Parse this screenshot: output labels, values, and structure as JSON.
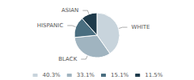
{
  "chart_data": {
    "type": "pie",
    "categories": [
      "WHITE",
      "BLACK",
      "HISPANIC",
      "ASIAN"
    ],
    "values": [
      40.3,
      33.1,
      15.1,
      11.5
    ],
    "value_labels": [
      "40.3%",
      "33.1%",
      "15.1%",
      "11.5%"
    ],
    "colors": [
      "#c8d4dc",
      "#a0b4c0",
      "#4a6e80",
      "#1e3a4a"
    ],
    "legend": "bottom"
  }
}
